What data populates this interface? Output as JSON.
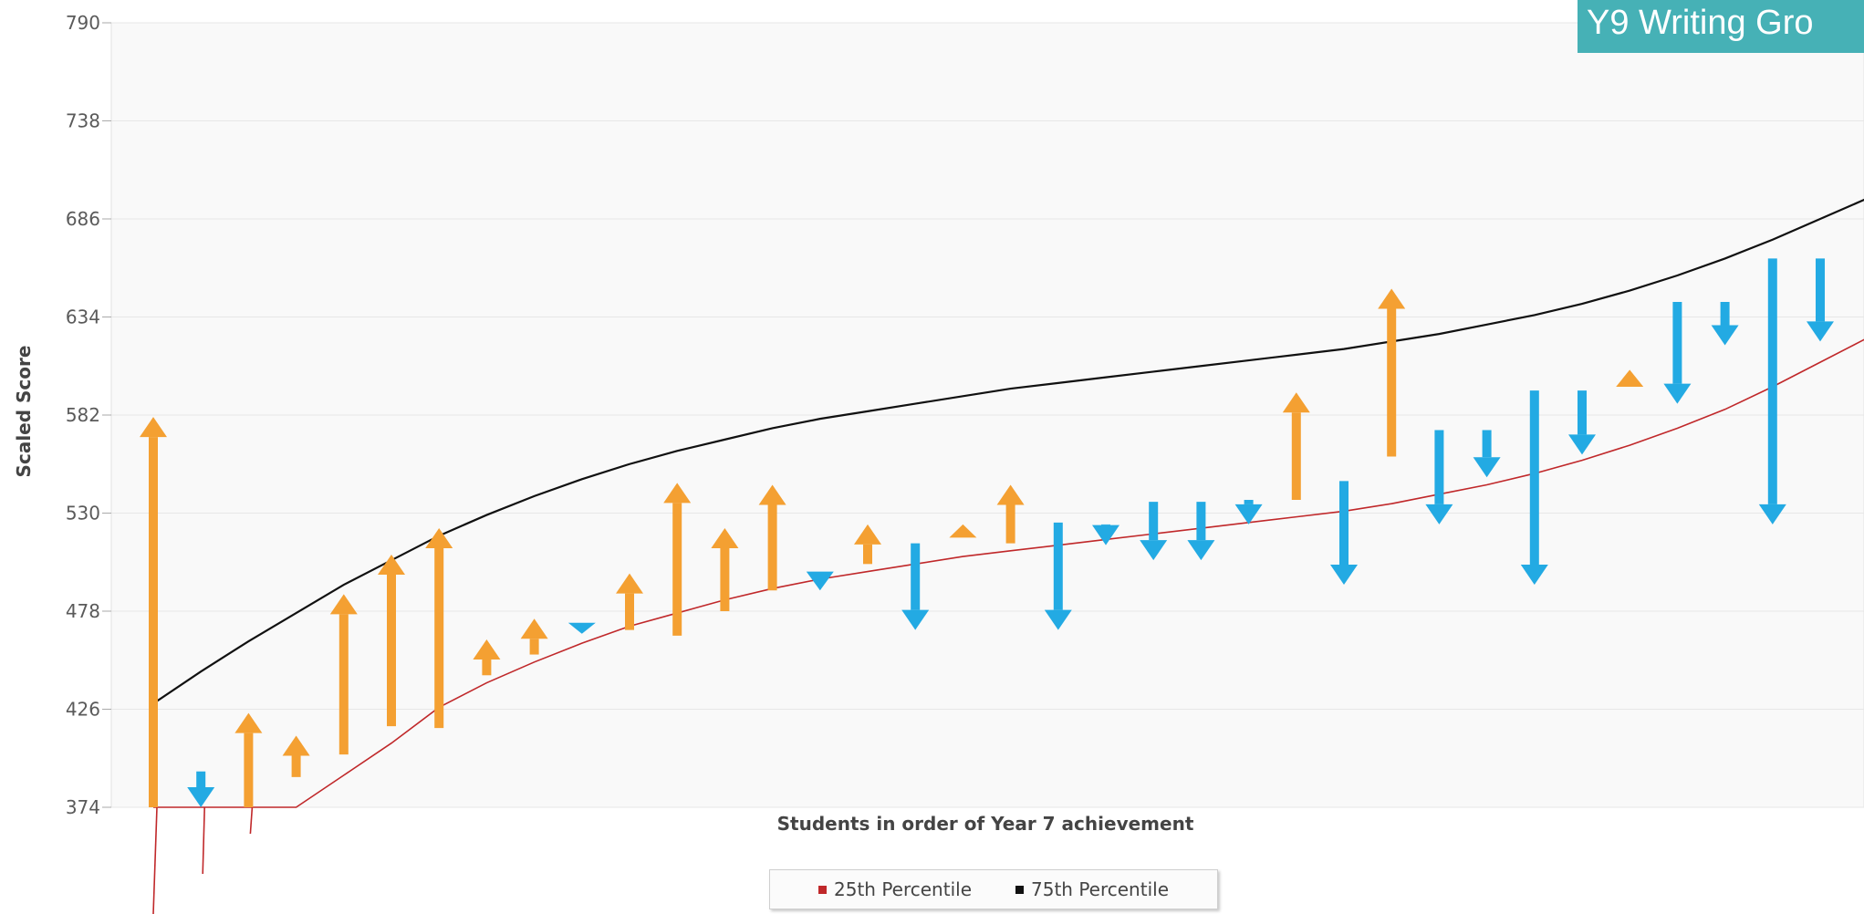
{
  "banner": {
    "title": "Y9 Writing Gro"
  },
  "chart_data": {
    "type": "arrow-range with percentile lines",
    "xlabel": "Students in order of Year 7 achievement",
    "ylabel": "Scaled Score",
    "ylim": [
      374,
      790
    ],
    "yticks": [
      "790",
      "738",
      "686",
      "634",
      "582",
      "530",
      "478",
      "426",
      "374"
    ],
    "grid": true,
    "legend_position": "bottom-center",
    "colors": {
      "increase": "#f4a032",
      "decrease": "#23aae3",
      "p25": "#c0282a",
      "p75": "#111111",
      "grid": "#e7e7e7",
      "plot_bg": "#f9f9f9"
    },
    "series": [
      {
        "name": "25th Percentile",
        "color": "#c0282a",
        "points": [
          [
            1,
            374
          ],
          [
            2,
            374
          ],
          [
            3,
            374
          ],
          [
            4,
            374
          ],
          [
            5,
            391
          ],
          [
            6,
            408
          ],
          [
            7,
            427
          ],
          [
            8,
            440
          ],
          [
            9,
            451
          ],
          [
            10,
            461
          ],
          [
            11,
            470
          ],
          [
            12,
            477
          ],
          [
            13,
            484
          ],
          [
            14,
            490
          ],
          [
            15,
            495
          ],
          [
            16,
            499
          ],
          [
            17,
            503
          ],
          [
            18,
            507
          ],
          [
            19,
            510
          ],
          [
            20,
            513
          ],
          [
            21,
            516
          ],
          [
            22,
            519
          ],
          [
            23,
            522
          ],
          [
            24,
            525
          ],
          [
            25,
            528
          ],
          [
            26,
            531
          ],
          [
            27,
            535
          ],
          [
            28,
            540
          ],
          [
            29,
            545
          ],
          [
            30,
            551
          ],
          [
            31,
            558
          ],
          [
            32,
            566
          ],
          [
            33,
            575
          ],
          [
            34,
            585
          ],
          [
            35,
            597
          ],
          [
            36,
            610
          ],
          [
            37,
            623
          ]
        ]
      },
      {
        "name": "75th Percentile",
        "color": "#111111",
        "points": [
          [
            1,
            429
          ],
          [
            2,
            446
          ],
          [
            3,
            462
          ],
          [
            4,
            477
          ],
          [
            5,
            492
          ],
          [
            6,
            505
          ],
          [
            7,
            518
          ],
          [
            8,
            529
          ],
          [
            9,
            539
          ],
          [
            10,
            548
          ],
          [
            11,
            556
          ],
          [
            12,
            563
          ],
          [
            13,
            569
          ],
          [
            14,
            575
          ],
          [
            15,
            580
          ],
          [
            16,
            584
          ],
          [
            17,
            588
          ],
          [
            18,
            592
          ],
          [
            19,
            596
          ],
          [
            20,
            599
          ],
          [
            21,
            602
          ],
          [
            22,
            605
          ],
          [
            23,
            608
          ],
          [
            24,
            611
          ],
          [
            25,
            614
          ],
          [
            26,
            617
          ],
          [
            27,
            621
          ],
          [
            28,
            625
          ],
          [
            29,
            630
          ],
          [
            30,
            635
          ],
          [
            31,
            641
          ],
          [
            32,
            648
          ],
          [
            33,
            656
          ],
          [
            34,
            665
          ],
          [
            35,
            675
          ],
          [
            36,
            686
          ],
          [
            37,
            697
          ]
        ]
      }
    ],
    "arrows": [
      {
        "student": 1,
        "from": 374,
        "to": 581
      },
      {
        "student": 2,
        "from": 393,
        "to": 374
      },
      {
        "student": 3,
        "from": 374,
        "to": 424
      },
      {
        "student": 4,
        "from": 390,
        "to": 412
      },
      {
        "student": 5,
        "from": 402,
        "to": 487
      },
      {
        "student": 6,
        "from": 417,
        "to": 508
      },
      {
        "student": 7,
        "from": 416,
        "to": 522
      },
      {
        "student": 8,
        "from": 444,
        "to": 463
      },
      {
        "student": 9,
        "from": 455,
        "to": 474
      },
      {
        "student": 10,
        "from": 468,
        "to": 466
      },
      {
        "student": 11,
        "from": 468,
        "to": 498
      },
      {
        "student": 12,
        "from": 465,
        "to": 546
      },
      {
        "student": 13,
        "from": 478,
        "to": 522
      },
      {
        "student": 14,
        "from": 489,
        "to": 545
      },
      {
        "student": 15,
        "from": 499,
        "to": 489
      },
      {
        "student": 16,
        "from": 503,
        "to": 524
      },
      {
        "student": 17,
        "from": 514,
        "to": 468
      },
      {
        "student": 18,
        "from": 517,
        "to": 524
      },
      {
        "student": 19,
        "from": 514,
        "to": 545
      },
      {
        "student": 20,
        "from": 525,
        "to": 468
      },
      {
        "student": 21,
        "from": 524,
        "to": 513
      },
      {
        "student": 22,
        "from": 536,
        "to": 505
      },
      {
        "student": 23,
        "from": 536,
        "to": 505
      },
      {
        "student": 24,
        "from": 537,
        "to": 524
      },
      {
        "student": 25,
        "from": 537,
        "to": 594
      },
      {
        "student": 26,
        "from": 547,
        "to": 492
      },
      {
        "student": 27,
        "from": 560,
        "to": 649
      },
      {
        "student": 28,
        "from": 574,
        "to": 524
      },
      {
        "student": 29,
        "from": 574,
        "to": 549
      },
      {
        "student": 30,
        "from": 595,
        "to": 492
      },
      {
        "student": 31,
        "from": 595,
        "to": 561
      },
      {
        "student": 32,
        "from": 597,
        "to": 606
      },
      {
        "student": 33,
        "from": 642,
        "to": 588
      },
      {
        "student": 34,
        "from": 642,
        "to": 619
      },
      {
        "student": 35,
        "from": 665,
        "to": 524
      },
      {
        "student": 36,
        "from": 665,
        "to": 621
      }
    ]
  }
}
